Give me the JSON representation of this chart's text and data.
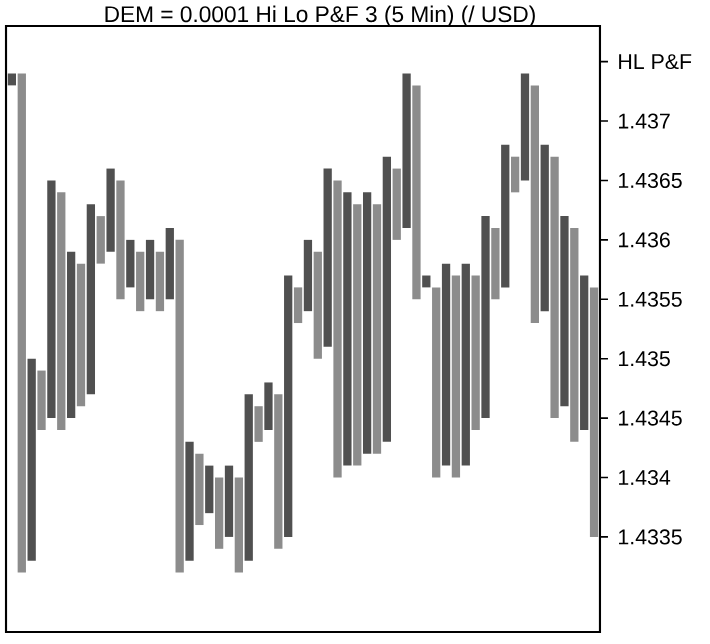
{
  "chart_data": {
    "type": "bar",
    "title": "DEM = 0.0001 Hi Lo P&F 3 (5 Min) (/ USD)",
    "categories": [
      null,
      null,
      null,
      null,
      null,
      null,
      null,
      null,
      null,
      null,
      null,
      null,
      null,
      null,
      null,
      null,
      null,
      null,
      null,
      null,
      null,
      null,
      null,
      null,
      null,
      null,
      null,
      null,
      null,
      null,
      null,
      null,
      null,
      null,
      null,
      null,
      null,
      null,
      null,
      null,
      null,
      null,
      null,
      null,
      null,
      null,
      null,
      null,
      null,
      null,
      null,
      null,
      null,
      null,
      null,
      null,
      null,
      null,
      null,
      null
    ],
    "base": [
      1.4373,
      1.4332,
      1.4333,
      1.4344,
      1.4345,
      1.4344,
      1.4345,
      1.4346,
      1.4347,
      1.4358,
      1.4359,
      1.4355,
      1.4356,
      1.4354,
      1.4355,
      1.4354,
      1.4355,
      1.4332,
      1.4333,
      1.4336,
      1.4337,
      1.4334,
      1.4335,
      1.4332,
      1.4333,
      1.4343,
      1.4344,
      1.4334,
      1.4335,
      1.4353,
      1.4354,
      1.435,
      1.4351,
      1.434,
      1.4341,
      1.4341,
      1.4342,
      1.4342,
      1.4343,
      1.436,
      1.4361,
      1.4355,
      1.4356,
      1.434,
      1.4341,
      1.434,
      1.4341,
      1.4344,
      1.4345,
      1.4355,
      1.4356,
      1.4364,
      1.4365,
      1.4353,
      1.4354,
      1.4345,
      1.4346,
      1.4343,
      1.4344,
      1.4335
    ],
    "values": [
      0.0001,
      0.0042,
      0.0017,
      0.0005,
      0.002,
      0.002,
      0.0014,
      0.0012,
      0.0016,
      0.0004,
      0.0007,
      0.001,
      0.0004,
      0.0005,
      0.0005,
      0.0005,
      0.0006,
      0.0028,
      0.001,
      0.0006,
      0.0004,
      0.0006,
      0.0006,
      0.0008,
      0.0014,
      0.0003,
      0.0004,
      0.0013,
      0.0022,
      0.0003,
      0.0006,
      0.0009,
      0.0015,
      0.0025,
      0.0023,
      0.0022,
      0.0022,
      0.0021,
      0.0024,
      0.0006,
      0.0013,
      0.0018,
      0.0001,
      0.0016,
      0.0017,
      0.0017,
      0.0017,
      0.0013,
      0.0017,
      0.0006,
      0.0012,
      0.0003,
      0.0009,
      0.002,
      0.0014,
      0.0022,
      0.0016,
      0.0018,
      0.0013,
      0.0021
    ],
    "colors": [
      "#505050",
      "#8c8c8c",
      "#505050",
      "#8c8c8c",
      "#505050",
      "#8c8c8c",
      "#505050",
      "#8c8c8c",
      "#505050",
      "#8c8c8c",
      "#505050",
      "#8c8c8c",
      "#505050",
      "#8c8c8c",
      "#505050",
      "#8c8c8c",
      "#505050",
      "#8c8c8c",
      "#505050",
      "#8c8c8c",
      "#505050",
      "#8c8c8c",
      "#505050",
      "#8c8c8c",
      "#505050",
      "#8c8c8c",
      "#505050",
      "#8c8c8c",
      "#505050",
      "#8c8c8c",
      "#505050",
      "#8c8c8c",
      "#505050",
      "#8c8c8c",
      "#505050",
      "#8c8c8c",
      "#505050",
      "#8c8c8c",
      "#505050",
      "#8c8c8c",
      "#505050",
      "#8c8c8c",
      "#505050",
      "#8c8c8c",
      "#505050",
      "#8c8c8c",
      "#505050",
      "#8c8c8c",
      "#505050",
      "#8c8c8c",
      "#505050",
      "#8c8c8c",
      "#505050",
      "#8c8c8c",
      "#505050",
      "#8c8c8c",
      "#505050",
      "#8c8c8c",
      "#505050",
      "#8c8c8c"
    ],
    "ylim": [
      1.4327,
      1.4378
    ],
    "yticks": [
      1.4335,
      1.434,
      1.4345,
      1.435,
      1.4355,
      1.436,
      1.4365,
      1.437,
      {
        "value": 1.4375,
        "label": "HL P&F"
      }
    ],
    "tick_labels": "y"
  }
}
